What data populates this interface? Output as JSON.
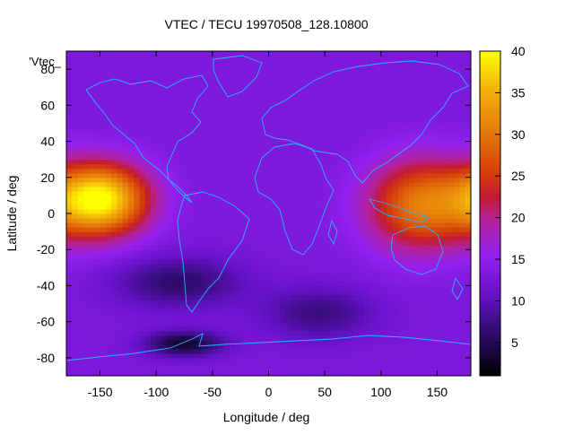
{
  "chart_data": {
    "type": "heatmap",
    "title": "VTEC / TECU 19970508_128.10800",
    "xlabel": "Longitude / deg",
    "ylabel": "Latitude / deg",
    "legend_key": "'Vtec_",
    "xlim": [
      -180,
      180
    ],
    "ylim": [
      -90,
      90
    ],
    "x_ticks": [
      -150,
      -100,
      -50,
      0,
      50,
      100,
      150
    ],
    "y_ticks": [
      -80,
      -60,
      -40,
      -20,
      0,
      20,
      40,
      60,
      80
    ],
    "colorbar": {
      "min": 1,
      "max": 40,
      "ticks": [
        5,
        10,
        15,
        20,
        25,
        30,
        35,
        40
      ]
    },
    "grid": false,
    "background_level": 13,
    "features": [
      {
        "name": "pacific-anomaly",
        "lon": -150,
        "lat": 8,
        "peak": 40,
        "sigma_lon": 30,
        "sigma_lat": 14
      },
      {
        "name": "asia-anomaly",
        "lon": 135,
        "lat": 5,
        "peak": 30,
        "sigma_lon": 34,
        "sigma_lat": 18
      },
      {
        "name": "south-pacific-low",
        "lon": -80,
        "lat": -38,
        "peak": 6,
        "sigma_lon": 40,
        "sigma_lat": 10
      },
      {
        "name": "antarctic-low",
        "lon": -75,
        "lat": -72,
        "peak": 3,
        "sigma_lon": 25,
        "sigma_lat": 5
      },
      {
        "name": "southern-ocean-low",
        "lon": 45,
        "lat": -55,
        "peak": 7,
        "sigma_lon": 35,
        "sigma_lat": 10
      }
    ]
  }
}
